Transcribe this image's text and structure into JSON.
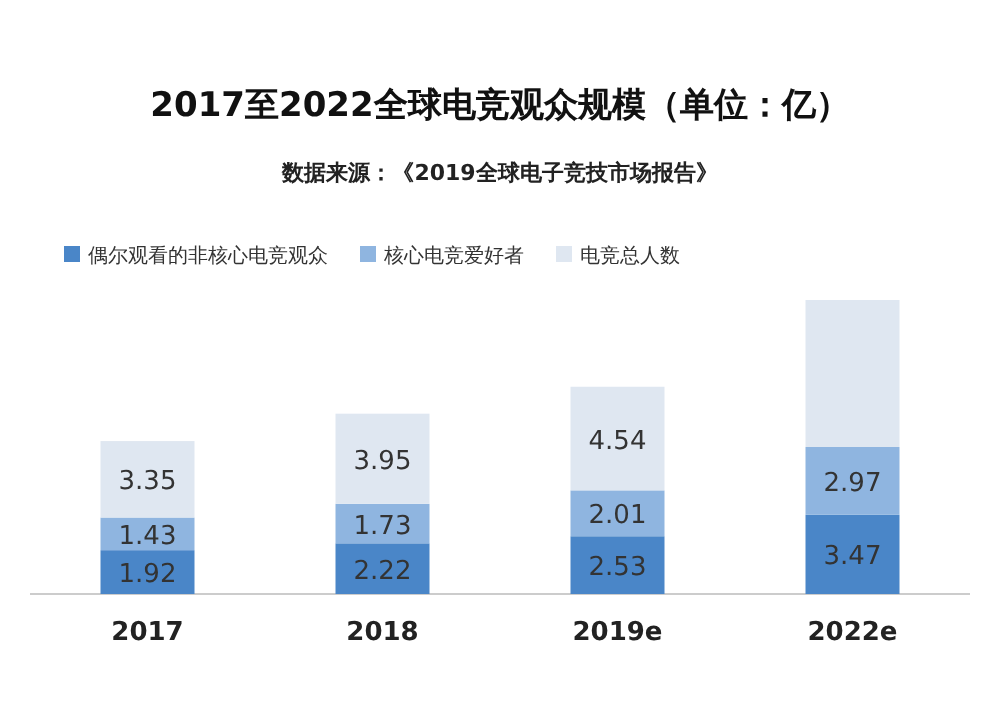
{
  "chart_data": {
    "type": "bar",
    "title": "2017至2022全球电竞观众规模（单位：亿）",
    "subtitle": "数据来源：《2019全球电子竞技市场报告》",
    "categories": [
      "2017",
      "2018",
      "2019e",
      "2022e"
    ],
    "stacked": true,
    "legend": "top left",
    "series": [
      {
        "name": "偶尔观看的非核心电竞观众",
        "color": "#4a86c8",
        "values": [
          1.92,
          2.22,
          2.53,
          3.47
        ],
        "value_labels": [
          "1.92",
          "2.22",
          "2.53",
          "3.47"
        ]
      },
      {
        "name": "核心电竞爱好者",
        "color": "#8fb5e0",
        "values": [
          1.43,
          1.73,
          2.01,
          2.97
        ],
        "value_labels": [
          "1.43",
          "1.73",
          "2.01",
          "2.97"
        ]
      },
      {
        "name": "电竞总人数",
        "color": "#dfe7f1",
        "values": [
          3.35,
          3.95,
          4.54,
          6.44
        ],
        "value_labels": [
          "3.35",
          "3.95",
          "4.54",
          null
        ]
      }
    ]
  }
}
